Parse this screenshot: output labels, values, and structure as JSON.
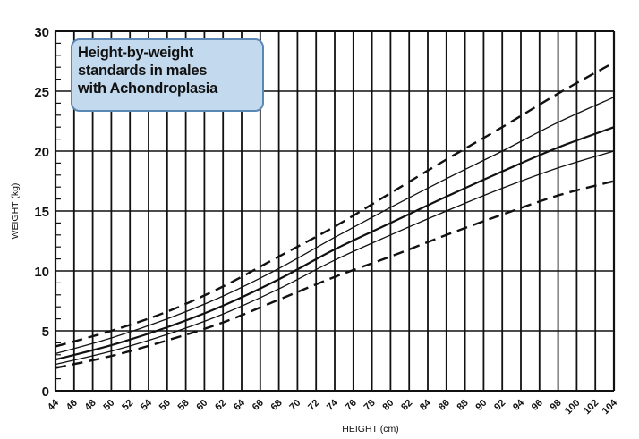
{
  "chart_data": {
    "type": "line",
    "title": [
      "Height-by-weight",
      "standards in males",
      "with Achondroplasia"
    ],
    "xlabel": "HEIGHT (cm)",
    "ylabel": "WEIGHT (kg)",
    "xlim": [
      44,
      104
    ],
    "ylim": [
      0,
      30
    ],
    "x_ticks": [
      44,
      46,
      48,
      50,
      52,
      54,
      56,
      58,
      60,
      62,
      64,
      66,
      68,
      70,
      72,
      74,
      76,
      78,
      80,
      82,
      84,
      86,
      88,
      90,
      92,
      94,
      96,
      98,
      100,
      102,
      104
    ],
    "y_ticks": [
      0,
      5,
      10,
      15,
      20,
      25,
      30
    ],
    "grid": true,
    "x": [
      44,
      50,
      56,
      62,
      68,
      74,
      80,
      86,
      92,
      98,
      104
    ],
    "series": [
      {
        "name": "upper dashed",
        "style": "dashed",
        "values": [
          3.7,
          5.0,
          6.6,
          8.7,
          11.2,
          13.7,
          16.5,
          19.3,
          22.0,
          24.8,
          27.4
        ]
      },
      {
        "name": "upper solid",
        "style": "thin",
        "values": [
          3.1,
          4.4,
          6.0,
          7.9,
          10.2,
          12.8,
          15.3,
          17.7,
          20.0,
          22.4,
          24.5
        ]
      },
      {
        "name": "median",
        "style": "thick",
        "values": [
          2.6,
          3.8,
          5.3,
          7.1,
          9.3,
          11.8,
          14.0,
          16.2,
          18.3,
          20.3,
          22.0
        ]
      },
      {
        "name": "lower solid",
        "style": "thin",
        "values": [
          2.2,
          3.3,
          4.7,
          6.4,
          8.5,
          10.9,
          13.0,
          15.0,
          16.9,
          18.6,
          20.0
        ]
      },
      {
        "name": "lower dashed",
        "style": "dashed",
        "values": [
          1.9,
          2.9,
          4.2,
          5.7,
          7.6,
          9.5,
          11.2,
          13.0,
          14.7,
          16.3,
          17.5
        ]
      }
    ]
  }
}
